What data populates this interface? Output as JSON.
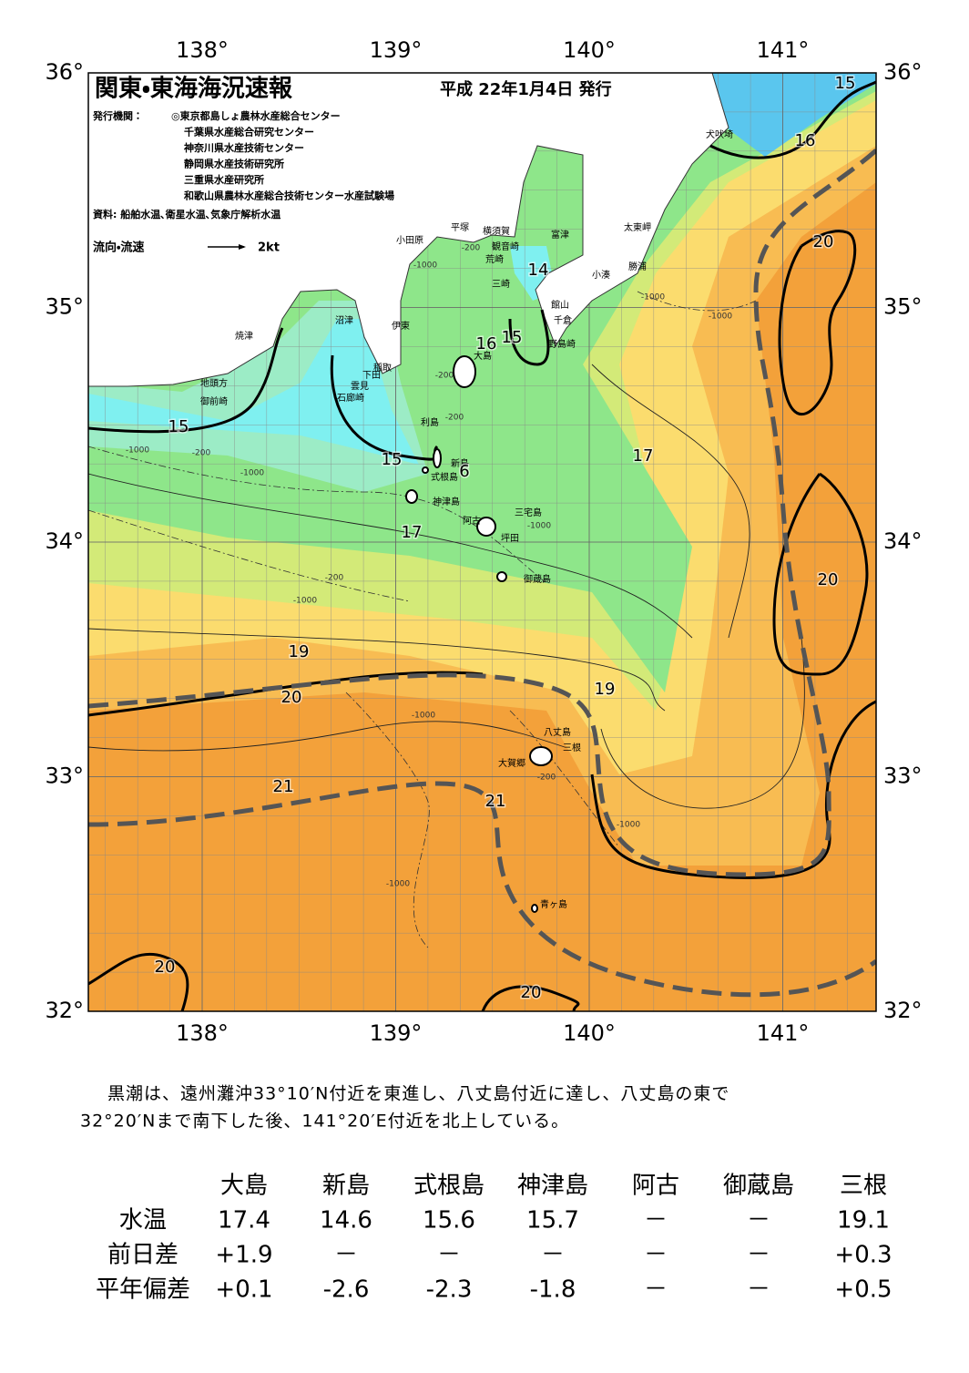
{
  "header": {
    "title": "関東・東海海況速報",
    "issued": "平成 22年1月4日 発行",
    "publisher_label": "発行機関：",
    "publishers": [
      "◎東京都島しょ農林水産総合センター",
      "千葉県水産総合研究センター",
      "神奈川県水産技術センター",
      "静岡県水産技術研究所",
      "三重県水産研究所",
      "和歌山県農林水産総合技術センター水産試験場"
    ],
    "source": "資料: 船舶水温､衛星水温､気象庁解析水温",
    "flow_label": "流向・流速",
    "flow_scale": "2kt"
  },
  "map": {
    "lon_ticks": [
      {
        "value": 138,
        "label": "138°"
      },
      {
        "value": 139,
        "label": "139°"
      },
      {
        "value": 140,
        "label": "140°"
      },
      {
        "value": 141,
        "label": "141°"
      }
    ],
    "lat_ticks": [
      {
        "value": 36,
        "label": "36°"
      },
      {
        "value": 35,
        "label": "35°"
      },
      {
        "value": 34,
        "label": "34°"
      },
      {
        "value": 33,
        "label": "33°"
      },
      {
        "value": 32,
        "label": "32°"
      }
    ],
    "places": [
      "犬吠埼",
      "太東岬",
      "勝浦",
      "小湊",
      "館山",
      "千倉",
      "野島崎",
      "富津",
      "横須賀",
      "観音崎",
      "荒崎",
      "三崎",
      "平塚",
      "小田原",
      "沼津",
      "伊東",
      "焼津",
      "稲取",
      "下田",
      "雲見",
      "石廊崎",
      "地頭方",
      "御前崎",
      "利島",
      "大島",
      "新島",
      "式根島",
      "神津島",
      "三宅島",
      "阿古",
      "坪田",
      "御蔵島",
      "八丈島",
      "三根",
      "大賀郷",
      "青ヶ島"
    ],
    "contour_labels": [
      "15",
      "16",
      "14",
      "15",
      "16",
      "15",
      "15",
      "6",
      "17",
      "17",
      "20",
      "20",
      "19",
      "20",
      "19",
      "21",
      "21",
      "20",
      "20"
    ],
    "depth_labels": [
      "-200",
      "-200",
      "-200",
      "-200",
      "-200",
      "-200",
      "-1000",
      "-1000",
      "-1000",
      "-1000",
      "-1000",
      "-1000",
      "-1000",
      "-1000",
      "-1000",
      "-1000"
    ]
  },
  "description": [
    "黒潮は、遠州灘沖33°10′N付近を東進し、八丈島付近に達し、八丈島の東で",
    "32°20′Nまで南下した後、141°20′E付近を北上している。"
  ],
  "table": {
    "columns": [
      "大島",
      "新島",
      "式根島",
      "神津島",
      "阿古",
      "御蔵島",
      "三根"
    ],
    "rows": [
      {
        "label": "水温",
        "values": [
          "17.4",
          "14.6",
          "15.6",
          "15.7",
          "－",
          "－",
          "19.1"
        ]
      },
      {
        "label": "前日差",
        "values": [
          "+1.9",
          "－",
          "－",
          "－",
          "－",
          "－",
          "+0.3"
        ]
      },
      {
        "label": "平年偏差",
        "values": [
          "+0.1",
          "-2.6",
          "-2.3",
          "-1.8",
          "－",
          "－",
          "+0.5"
        ]
      }
    ]
  }
}
